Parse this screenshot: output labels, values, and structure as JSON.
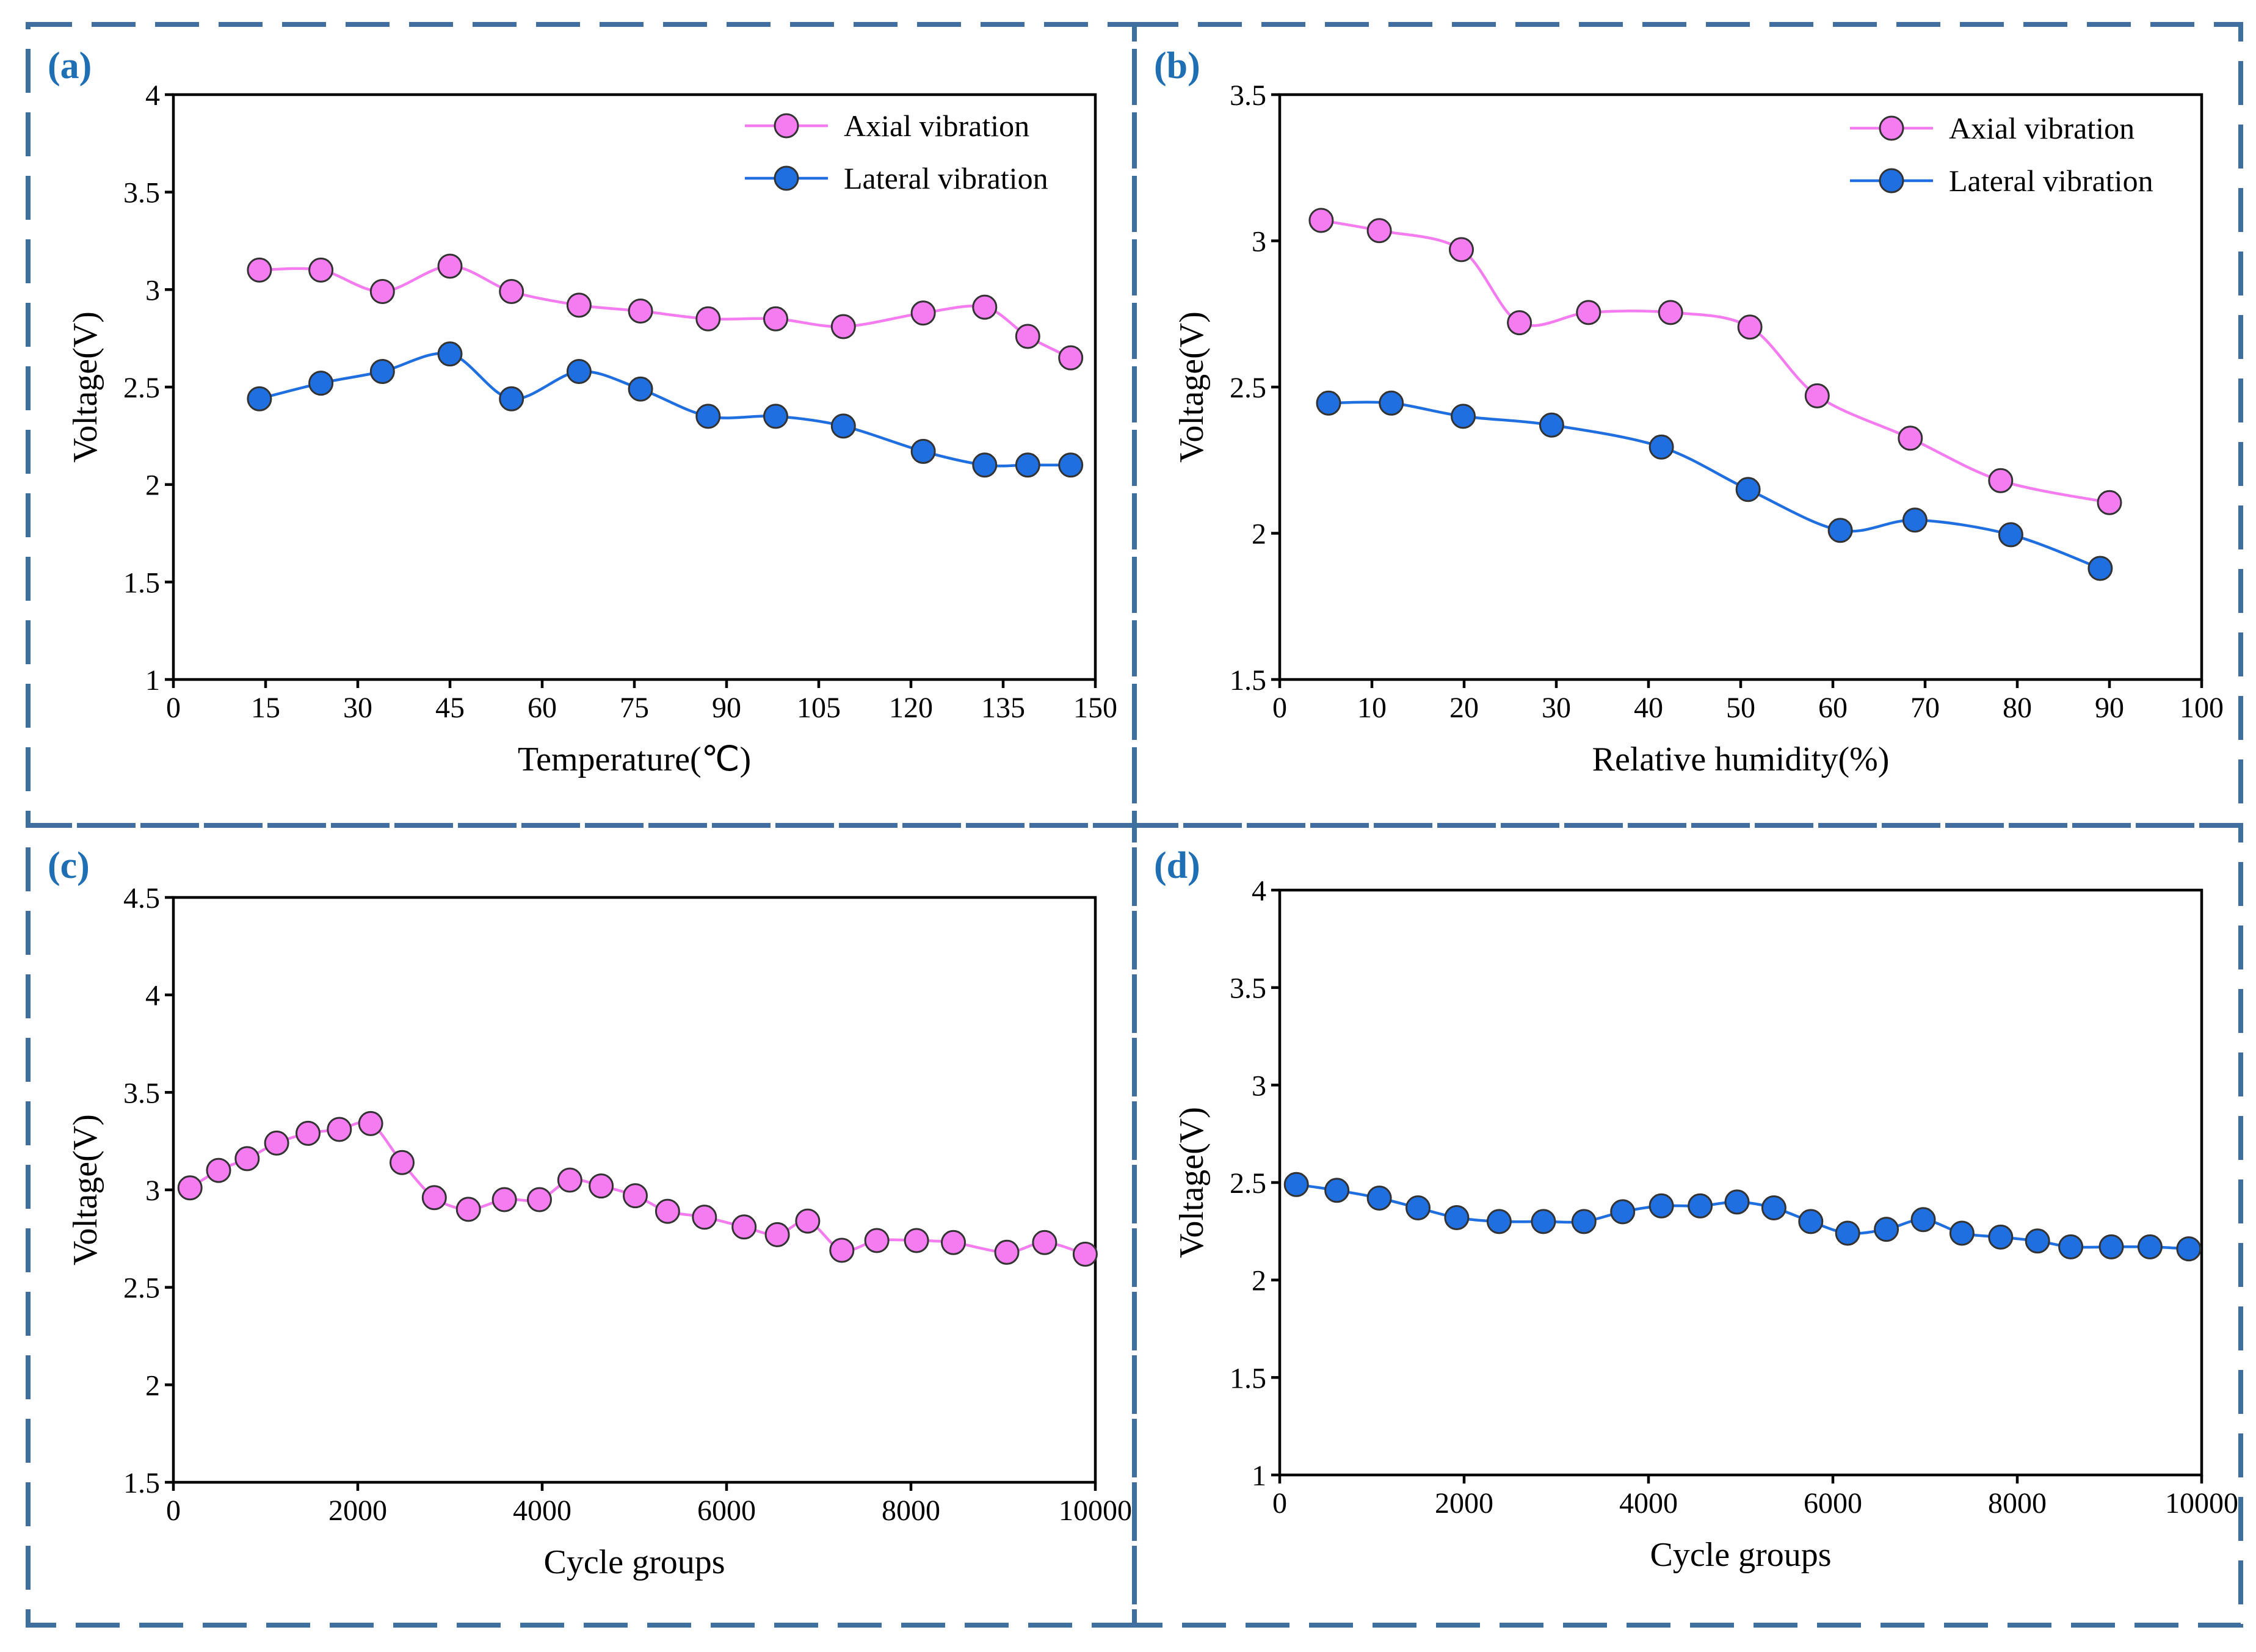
{
  "figure": {
    "colors": {
      "axial": "#f57cf0",
      "axial_line": "#f57cf0",
      "lateral": "#1f6fe0",
      "lateral_line": "#1f6fe0",
      "frame": "#3f6f9e",
      "panel_label": "#1f6fb4"
    }
  },
  "chart_data": [
    {
      "panel": "(a)",
      "type": "line",
      "xlabel": "Temperature(℃)",
      "ylabel": "Voltage(V)",
      "xlim": [
        0,
        150
      ],
      "ylim": [
        1,
        4
      ],
      "xticks": [
        0,
        15,
        30,
        45,
        60,
        75,
        90,
        105,
        120,
        135,
        150
      ],
      "yticks": [
        1,
        1.5,
        2,
        2.5,
        3,
        3.5,
        4
      ],
      "legend": "top-right",
      "series": [
        {
          "name": "Axial vibration",
          "color": "#f57cf0",
          "x": [
            14,
            24,
            34,
            45,
            55,
            66,
            76,
            87,
            98,
            109,
            122,
            132,
            139,
            146
          ],
          "y": [
            3.1,
            3.1,
            2.99,
            3.12,
            2.99,
            2.92,
            2.89,
            2.85,
            2.85,
            2.81,
            2.88,
            2.91,
            2.76,
            2.65
          ]
        },
        {
          "name": "Lateral vibration",
          "color": "#1f6fe0",
          "x": [
            14,
            24,
            34,
            45,
            55,
            66,
            76,
            87,
            98,
            109,
            122,
            132,
            139,
            146
          ],
          "y": [
            2.44,
            2.52,
            2.58,
            2.67,
            2.44,
            2.58,
            2.49,
            2.35,
            2.35,
            2.3,
            2.17,
            2.1,
            2.1,
            2.1
          ]
        }
      ]
    },
    {
      "panel": "(b)",
      "type": "line",
      "xlabel": "Relative humidity(%)",
      "ylabel": "Voltage(V)",
      "xlim": [
        0,
        100
      ],
      "ylim": [
        1.5,
        3.5
      ],
      "xticks": [
        0,
        10,
        20,
        30,
        40,
        50,
        60,
        70,
        80,
        90,
        100
      ],
      "yticks": [
        1.5,
        2,
        2.5,
        3,
        3.5
      ],
      "legend": "top-right",
      "series": [
        {
          "name": "Axial vibration",
          "color": "#f57cf0",
          "x": [
            4.5,
            10.8,
            19.7,
            26,
            33.5,
            42.4,
            51,
            58.3,
            68.4,
            78.2,
            90
          ],
          "y": [
            3.07,
            3.035,
            2.97,
            2.72,
            2.755,
            2.755,
            2.705,
            2.47,
            2.325,
            2.18,
            2.105
          ]
        },
        {
          "name": "Lateral vibration",
          "color": "#1f6fe0",
          "x": [
            5.3,
            12.1,
            19.9,
            29.5,
            41.4,
            50.8,
            60.8,
            68.9,
            79.3,
            89
          ],
          "y": [
            2.445,
            2.445,
            2.4,
            2.37,
            2.295,
            2.15,
            2.01,
            2.045,
            1.995,
            1.88
          ]
        }
      ]
    },
    {
      "panel": "(c)",
      "type": "line",
      "xlabel": "Cycle groups",
      "ylabel": "Voltage(V)",
      "xlim": [
        0,
        10000
      ],
      "ylim": [
        1.5,
        4.5
      ],
      "xticks": [
        0,
        2000,
        4000,
        6000,
        8000,
        10000
      ],
      "yticks": [
        1.5,
        2,
        2.5,
        3,
        3.5,
        4,
        4.5
      ],
      "legend": "none",
      "series": [
        {
          "name": "Axial vibration",
          "color": "#f57cf0",
          "x": [
            180,
            490,
            800,
            1120,
            1460,
            1800,
            2140,
            2480,
            2830,
            3200,
            3590,
            3970,
            4300,
            4640,
            5010,
            5360,
            5760,
            6190,
            6550,
            6880,
            7250,
            7630,
            8060,
            8460,
            9040,
            9450,
            9890
          ],
          "y": [
            3.01,
            3.1,
            3.16,
            3.24,
            3.29,
            3.31,
            3.34,
            3.14,
            2.96,
            2.9,
            2.95,
            2.95,
            3.05,
            3.02,
            2.97,
            2.89,
            2.86,
            2.81,
            2.77,
            2.84,
            2.69,
            2.74,
            2.74,
            2.73,
            2.68,
            2.73,
            2.67
          ]
        }
      ]
    },
    {
      "panel": "(d)",
      "type": "line",
      "xlabel": "Cycle groups",
      "ylabel": "Voltage(V)",
      "xlim": [
        0,
        10000
      ],
      "ylim": [
        1,
        4
      ],
      "xticks": [
        0,
        2000,
        4000,
        6000,
        8000,
        10000
      ],
      "yticks": [
        1,
        1.5,
        2,
        2.5,
        3,
        3.5,
        4
      ],
      "legend": "none",
      "series": [
        {
          "name": "Lateral vibration",
          "color": "#1f6fe0",
          "x": [
            180,
            620,
            1080,
            1500,
            1920,
            2380,
            2860,
            3300,
            3720,
            4140,
            4560,
            4960,
            5360,
            5760,
            6160,
            6580,
            6980,
            7400,
            7820,
            8220,
            8580,
            9020,
            9440,
            9860
          ],
          "y": [
            2.49,
            2.46,
            2.42,
            2.37,
            2.32,
            2.3,
            2.3,
            2.3,
            2.35,
            2.38,
            2.38,
            2.4,
            2.37,
            2.3,
            2.24,
            2.26,
            2.31,
            2.24,
            2.22,
            2.2,
            2.17,
            2.17,
            2.17,
            2.16
          ]
        }
      ]
    }
  ]
}
